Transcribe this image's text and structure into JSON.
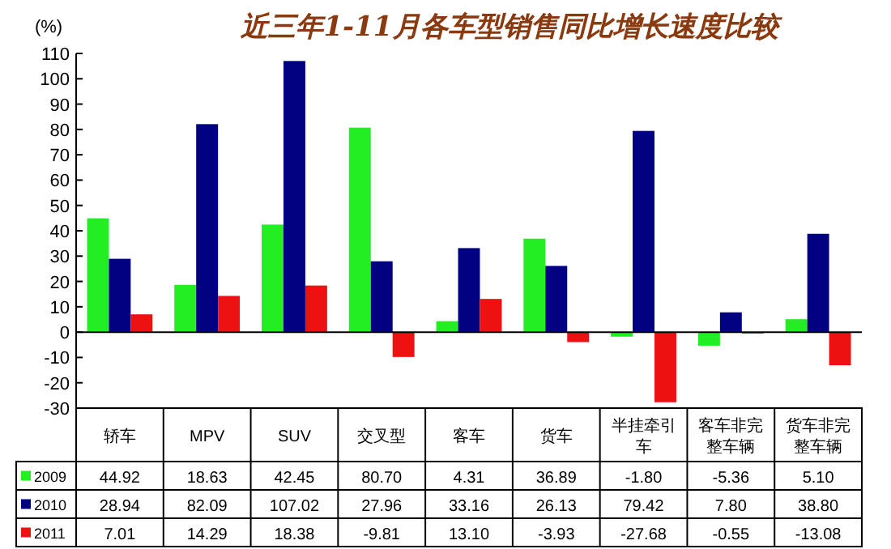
{
  "chart_data": {
    "type": "bar",
    "title": "近三年1-11月各车型销售同比增长速度比较",
    "ylabel": "(%)",
    "categories": [
      "轿车",
      "MPV",
      "SUV",
      "交叉型",
      "客车",
      "货车",
      "半挂牵引车",
      "客车非完整车辆",
      "货车非完整车辆"
    ],
    "ylim": [
      -30,
      110
    ],
    "yticks": [
      -30,
      -20,
      -10,
      0,
      10,
      20,
      30,
      40,
      50,
      60,
      70,
      80,
      90,
      100,
      110
    ],
    "legend": "bottom left",
    "series": [
      {
        "name": "2009",
        "color": "#22ee22",
        "values": [
          44.92,
          18.63,
          42.45,
          80.7,
          4.31,
          36.89,
          -1.8,
          -5.36,
          5.1
        ],
        "value_labels": [
          "44.92",
          "18.63",
          "42.45",
          "80.70",
          "4.31",
          "36.89",
          "-1.80",
          "-5.36",
          "5.10"
        ]
      },
      {
        "name": "2010",
        "color": "#000080",
        "values": [
          28.94,
          82.09,
          107.02,
          27.96,
          33.16,
          26.13,
          79.42,
          7.8,
          38.8
        ],
        "value_labels": [
          "28.94",
          "82.09",
          "107.02",
          "27.96",
          "33.16",
          "26.13",
          "79.42",
          "7.80",
          "38.80"
        ]
      },
      {
        "name": "2011",
        "color": "#ee1111",
        "values": [
          7.01,
          14.29,
          18.38,
          -9.81,
          13.1,
          -3.93,
          -27.68,
          -0.55,
          -13.08
        ],
        "value_labels": [
          "7.01",
          "14.29",
          "18.38",
          "-9.81",
          "13.10",
          "-3.93",
          "-27.68",
          "-0.55",
          "-13.08"
        ]
      }
    ]
  }
}
